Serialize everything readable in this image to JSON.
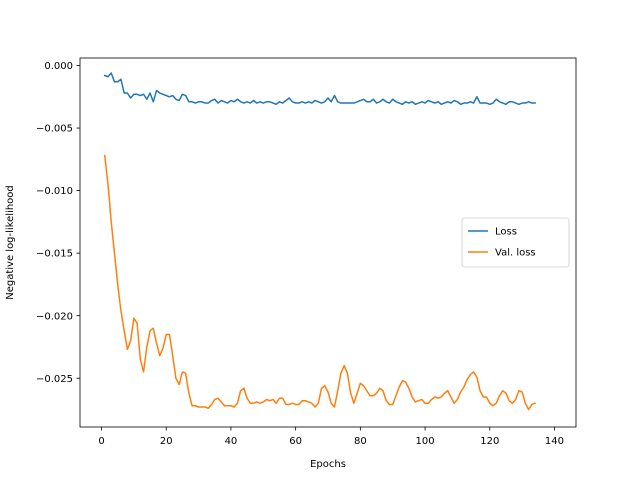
{
  "chart_data": {
    "type": "line",
    "title": "",
    "xlabel": "Epochs",
    "ylabel": "Negative log-likelihood",
    "xlim": [
      -6.65,
      146.65
    ],
    "ylim": [
      -0.0289,
      0.0006
    ],
    "xticks": [
      0,
      20,
      40,
      60,
      80,
      100,
      120,
      140
    ],
    "xtick_labels": [
      "0",
      "20",
      "40",
      "60",
      "80",
      "100",
      "120",
      "140"
    ],
    "yticks": [
      0.0,
      -0.005,
      -0.01,
      -0.015,
      -0.02,
      -0.025
    ],
    "ytick_labels": [
      "0.000",
      "−0.005",
      "−0.010",
      "−0.015",
      "−0.020",
      "−0.025"
    ],
    "grid": false,
    "legend_position": "center-right",
    "series": [
      {
        "name": "Loss",
        "color": "#1f77b4",
        "x": [
          1,
          2,
          3,
          4,
          5,
          6,
          7,
          8,
          9,
          10,
          11,
          12,
          13,
          14,
          15,
          16,
          17,
          18,
          19,
          20,
          21,
          22,
          23,
          24,
          25,
          26,
          27,
          28,
          29,
          30,
          31,
          32,
          33,
          34,
          35,
          36,
          37,
          38,
          39,
          40,
          41,
          42,
          43,
          44,
          45,
          46,
          47,
          48,
          49,
          50,
          51,
          52,
          53,
          54,
          55,
          56,
          57,
          58,
          59,
          60,
          61,
          62,
          63,
          64,
          65,
          66,
          67,
          68,
          69,
          70,
          71,
          72,
          73,
          74,
          75,
          76,
          77,
          78,
          79,
          80,
          81,
          82,
          83,
          84,
          85,
          86,
          87,
          88,
          89,
          90,
          91,
          92,
          93,
          94,
          95,
          96,
          97,
          98,
          99,
          100,
          101,
          102,
          103,
          104,
          105,
          106,
          107,
          108,
          109,
          110,
          111,
          112,
          113,
          114,
          115,
          116,
          117,
          118,
          119,
          120,
          121,
          122,
          123,
          124,
          125,
          126,
          127,
          128,
          129,
          130,
          131,
          132,
          133,
          134
        ],
        "values": [
          -0.0008,
          -0.0009,
          -0.0006,
          -0.0013,
          -0.0013,
          -0.0011,
          -0.0022,
          -0.0022,
          -0.0026,
          -0.0023,
          -0.0023,
          -0.0024,
          -0.0023,
          -0.0027,
          -0.0022,
          -0.0029,
          -0.002,
          -0.0022,
          -0.0023,
          -0.0024,
          -0.0025,
          -0.0024,
          -0.0027,
          -0.0028,
          -0.0023,
          -0.0024,
          -0.0029,
          -0.0029,
          -0.003,
          -0.0029,
          -0.0029,
          -0.003,
          -0.003,
          -0.0028,
          -0.0027,
          -0.003,
          -0.0028,
          -0.0029,
          -0.003,
          -0.0028,
          -0.0029,
          -0.0027,
          -0.0029,
          -0.003,
          -0.0029,
          -0.003,
          -0.0028,
          -0.003,
          -0.0029,
          -0.003,
          -0.0029,
          -0.0029,
          -0.003,
          -0.0031,
          -0.0029,
          -0.003,
          -0.0028,
          -0.0026,
          -0.0029,
          -0.003,
          -0.003,
          -0.0029,
          -0.003,
          -0.0029,
          -0.003,
          -0.0028,
          -0.0029,
          -0.003,
          -0.0029,
          -0.0026,
          -0.0029,
          -0.0024,
          -0.0029,
          -0.003,
          -0.003,
          -0.003,
          -0.003,
          -0.003,
          -0.0029,
          -0.0028,
          -0.0027,
          -0.0029,
          -0.0029,
          -0.0027,
          -0.003,
          -0.0029,
          -0.0027,
          -0.0029,
          -0.003,
          -0.0027,
          -0.0029,
          -0.003,
          -0.0031,
          -0.0029,
          -0.003,
          -0.0029,
          -0.0031,
          -0.003,
          -0.0029,
          -0.003,
          -0.0028,
          -0.0029,
          -0.003,
          -0.0029,
          -0.0031,
          -0.003,
          -0.0029,
          -0.003,
          -0.0028,
          -0.0029,
          -0.0031,
          -0.003,
          -0.003,
          -0.0029,
          -0.003,
          -0.0025,
          -0.003,
          -0.003,
          -0.003,
          -0.0031,
          -0.003,
          -0.0027,
          -0.0029,
          -0.003,
          -0.0031,
          -0.0029,
          -0.0029,
          -0.003,
          -0.0031,
          -0.003,
          -0.003,
          -0.0029,
          -0.003,
          -0.003
        ]
      },
      {
        "name": "Val. loss",
        "color": "#ff7f0e",
        "x": [
          1,
          2,
          3,
          4,
          5,
          6,
          7,
          8,
          9,
          10,
          11,
          12,
          13,
          14,
          15,
          16,
          17,
          18,
          19,
          20,
          21,
          22,
          23,
          24,
          25,
          26,
          27,
          28,
          29,
          30,
          31,
          32,
          33,
          34,
          35,
          36,
          37,
          38,
          39,
          40,
          41,
          42,
          43,
          44,
          45,
          46,
          47,
          48,
          49,
          50,
          51,
          52,
          53,
          54,
          55,
          56,
          57,
          58,
          59,
          60,
          61,
          62,
          63,
          64,
          65,
          66,
          67,
          68,
          69,
          70,
          71,
          72,
          73,
          74,
          75,
          76,
          77,
          78,
          79,
          80,
          81,
          82,
          83,
          84,
          85,
          86,
          87,
          88,
          89,
          90,
          91,
          92,
          93,
          94,
          95,
          96,
          97,
          98,
          99,
          100,
          101,
          102,
          103,
          104,
          105,
          106,
          107,
          108,
          109,
          110,
          111,
          112,
          113,
          114,
          115,
          116,
          117,
          118,
          119,
          120,
          121,
          122,
          123,
          124,
          125,
          126,
          127,
          128,
          129,
          130,
          131,
          132,
          133,
          134
        ],
        "values": [
          -0.0072,
          -0.0095,
          -0.0125,
          -0.015,
          -0.0175,
          -0.0196,
          -0.0212,
          -0.0227,
          -0.022,
          -0.0202,
          -0.0206,
          -0.0235,
          -0.0245,
          -0.0225,
          -0.0212,
          -0.021,
          -0.0222,
          -0.0232,
          -0.0226,
          -0.0215,
          -0.0215,
          -0.0232,
          -0.025,
          -0.0255,
          -0.0245,
          -0.0246,
          -0.0262,
          -0.0272,
          -0.0272,
          -0.0273,
          -0.0273,
          -0.0273,
          -0.0274,
          -0.0271,
          -0.0267,
          -0.0266,
          -0.0269,
          -0.0272,
          -0.0272,
          -0.0272,
          -0.0273,
          -0.027,
          -0.026,
          -0.0258,
          -0.0266,
          -0.027,
          -0.027,
          -0.0269,
          -0.027,
          -0.0269,
          -0.0267,
          -0.0268,
          -0.0267,
          -0.027,
          -0.0266,
          -0.0266,
          -0.0271,
          -0.0271,
          -0.027,
          -0.0271,
          -0.0271,
          -0.0268,
          -0.0268,
          -0.0269,
          -0.027,
          -0.0273,
          -0.027,
          -0.0258,
          -0.0256,
          -0.0261,
          -0.027,
          -0.0273,
          -0.026,
          -0.0246,
          -0.024,
          -0.0246,
          -0.0262,
          -0.027,
          -0.0262,
          -0.0254,
          -0.0256,
          -0.026,
          -0.0264,
          -0.0264,
          -0.0262,
          -0.0258,
          -0.026,
          -0.0268,
          -0.0271,
          -0.0271,
          -0.0264,
          -0.0257,
          -0.0252,
          -0.0253,
          -0.0258,
          -0.0265,
          -0.0269,
          -0.0268,
          -0.0267,
          -0.027,
          -0.027,
          -0.0267,
          -0.0265,
          -0.0266,
          -0.0265,
          -0.0262,
          -0.026,
          -0.0265,
          -0.027,
          -0.0267,
          -0.0261,
          -0.0257,
          -0.0251,
          -0.0247,
          -0.0245,
          -0.0249,
          -0.026,
          -0.0265,
          -0.0265,
          -0.027,
          -0.0272,
          -0.027,
          -0.0264,
          -0.026,
          -0.0262,
          -0.0268,
          -0.027,
          -0.0267,
          -0.026,
          -0.0261,
          -0.027,
          -0.0275,
          -0.0271,
          -0.027
        ]
      }
    ]
  }
}
